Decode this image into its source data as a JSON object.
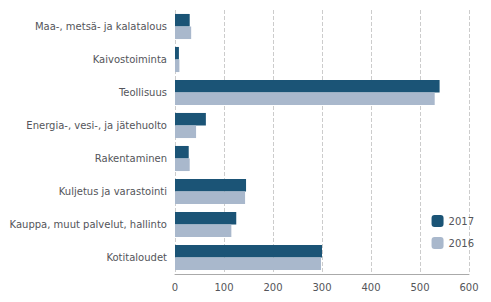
{
  "chart_data": {
    "type": "bar",
    "orientation": "horizontal",
    "categories": [
      "Kotitaloudet",
      "Kauppa, muut palvelut, hallinto",
      "Kuljetus ja varastointi",
      "Rakentaminen",
      "Energia-, vesi-, ja jätehuolto",
      "Teollisuus",
      "Kaivostoiminta",
      "Maa-, metsä- ja kalatalous"
    ],
    "series": [
      {
        "name": "2017",
        "color": "#1b5476",
        "values": [
          300,
          125,
          145,
          28,
          63,
          540,
          8,
          30
        ]
      },
      {
        "name": "2016",
        "color": "#a9b8cc",
        "values": [
          298,
          115,
          143,
          30,
          43,
          530,
          9,
          33
        ]
      }
    ],
    "xlim": [
      0,
      600
    ],
    "xticks": [
      0,
      100,
      200,
      300,
      400,
      500,
      600
    ],
    "grid": true,
    "legend": "lower right"
  }
}
